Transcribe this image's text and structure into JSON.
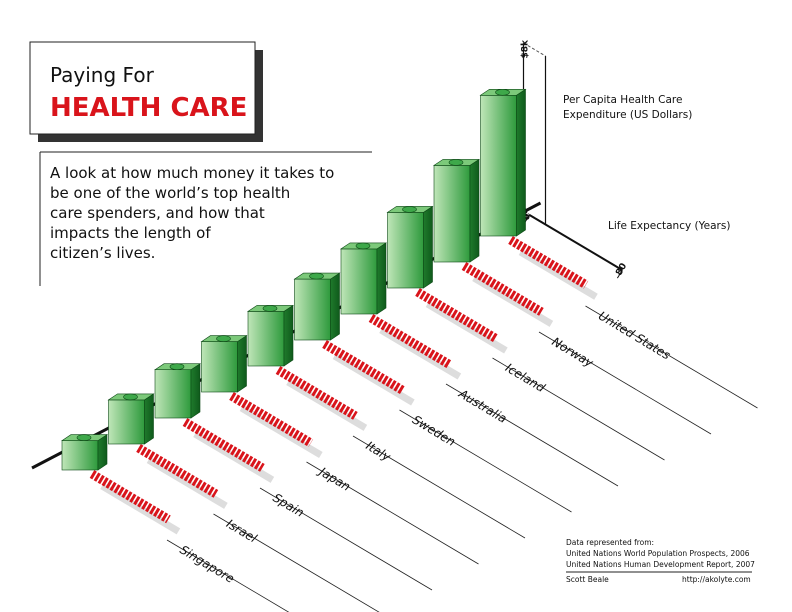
{
  "title": "Paying For",
  "headline": "HEALTH CARE",
  "description": [
    "A look at how much money it takes to",
    "be one of the world’s top health",
    "care spenders, and how that",
    "impacts the length of",
    "citizen’s lives."
  ],
  "chart_data": {
    "type": "iso-bar",
    "categories": [
      "Singapore",
      "Israel",
      "Spain",
      "Japan",
      "Italy",
      "Sweden",
      "Australia",
      "Iceland",
      "Norway",
      "United States"
    ],
    "series": [
      {
        "name": [
          "Per Capita Health Care",
          "Expenditure (US Dollars)"
        ],
        "color": "#2e9a3c",
        "values": [
          1400,
          2100,
          2300,
          2400,
          2600,
          2900,
          3100,
          3600,
          4600,
          6700
        ]
      },
      {
        "name": "Life Expectancy (Years)",
        "color": "#d9141b",
        "values": [
          79,
          80,
          80,
          82,
          80,
          81,
          81,
          81,
          80,
          78
        ]
      }
    ],
    "ylim": [
      0,
      8000
    ],
    "yticks": [
      {
        "value": 0,
        "label": "$0"
      },
      {
        "value": 8000,
        "label": "$8k"
      }
    ],
    "y2lim": [
      0,
      80
    ],
    "y2ticks": [
      0,
      80
    ]
  },
  "sources": {
    "heading": "Data represented from:",
    "lines": [
      "United Nations World Population Prospects, 2006",
      "United Nations Human Development Report, 2007"
    ],
    "author": "Scott Beale",
    "url": "http://akolyte.com"
  }
}
